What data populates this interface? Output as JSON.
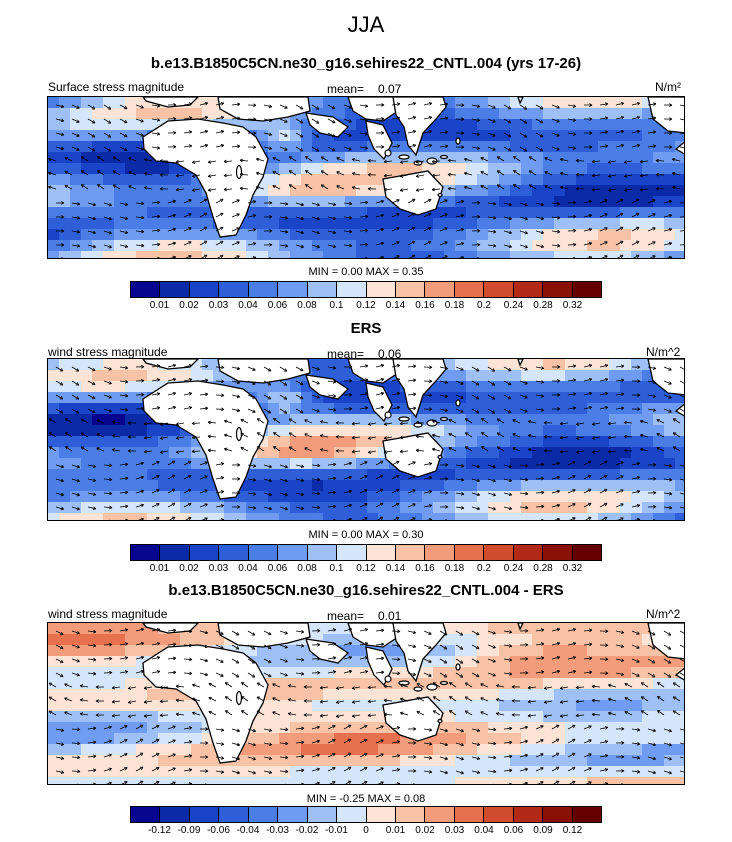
{
  "main_title": "JJA",
  "panels": [
    {
      "title": "b.e13.B1850C5CN.ne30_g16.sehires22_CNTL.004 (yrs 17-26)",
      "left_label": "Surface stress magnitude",
      "mean_label": "mean=",
      "mean_value": "0.07",
      "units": "N/m²",
      "minmax": "MIN =  0.00 MAX =  0.35",
      "ticks": [
        "0.01",
        "0.02",
        "0.03",
        "0.04",
        "0.06",
        "0.08",
        "0.1",
        "0.12",
        "0.14",
        "0.16",
        "0.18",
        "0.2",
        "0.24",
        "0.28",
        "0.32"
      ],
      "colors": [
        "#08068f",
        "#0b2aa8",
        "#1a44c7",
        "#2e5fd9",
        "#4a7de6",
        "#6f9cf0",
        "#9ec0f6",
        "#d5e6fb",
        "#fbe3d6",
        "#f8c2a6",
        "#f39c7b",
        "#e7714f",
        "#d14b2e",
        "#b22a17",
        "#8a0f05",
        "#650000"
      ],
      "field": "positive"
    },
    {
      "title": "ERS",
      "left_label": "wind stress magnitude",
      "mean_label": "mean=",
      "mean_value": "0.06",
      "units": "N/m^2",
      "minmax": "MIN =  0.00 MAX =  0.30",
      "ticks": [
        "0.01",
        "0.02",
        "0.03",
        "0.04",
        "0.06",
        "0.08",
        "0.1",
        "0.12",
        "0.14",
        "0.16",
        "0.18",
        "0.2",
        "0.24",
        "0.28",
        "0.32"
      ],
      "colors": [
        "#08068f",
        "#0b2aa8",
        "#1a44c7",
        "#2e5fd9",
        "#4a7de6",
        "#6f9cf0",
        "#9ec0f6",
        "#d5e6fb",
        "#fbe3d6",
        "#f8c2a6",
        "#f39c7b",
        "#e7714f",
        "#d14b2e",
        "#b22a17",
        "#8a0f05",
        "#650000"
      ],
      "field": "positive"
    },
    {
      "title": "b.e13.B1850C5CN.ne30_g16.sehires22_CNTL.004 - ERS",
      "left_label": "wind stress magnitude",
      "mean_label": "mean=",
      "mean_value": "0.01",
      "units": "N/m^2",
      "minmax": "MIN = -0.25 MAX =  0.08",
      "ticks": [
        "-0.12",
        "-0.09",
        "-0.06",
        "-0.04",
        "-0.03",
        "-0.02",
        "-0.01",
        "0",
        "0.01",
        "0.02",
        "0.03",
        "0.04",
        "0.06",
        "0.09",
        "0.12"
      ],
      "colors": [
        "#08068f",
        "#0b2aa8",
        "#1a44c7",
        "#2e5fd9",
        "#4a7de6",
        "#6f9cf0",
        "#9ec0f6",
        "#d5e6fb",
        "#fbe3d6",
        "#f8c2a6",
        "#f39c7b",
        "#e7714f",
        "#d14b2e",
        "#b22a17",
        "#8a0f05",
        "#650000"
      ],
      "field": "difference"
    }
  ]
}
